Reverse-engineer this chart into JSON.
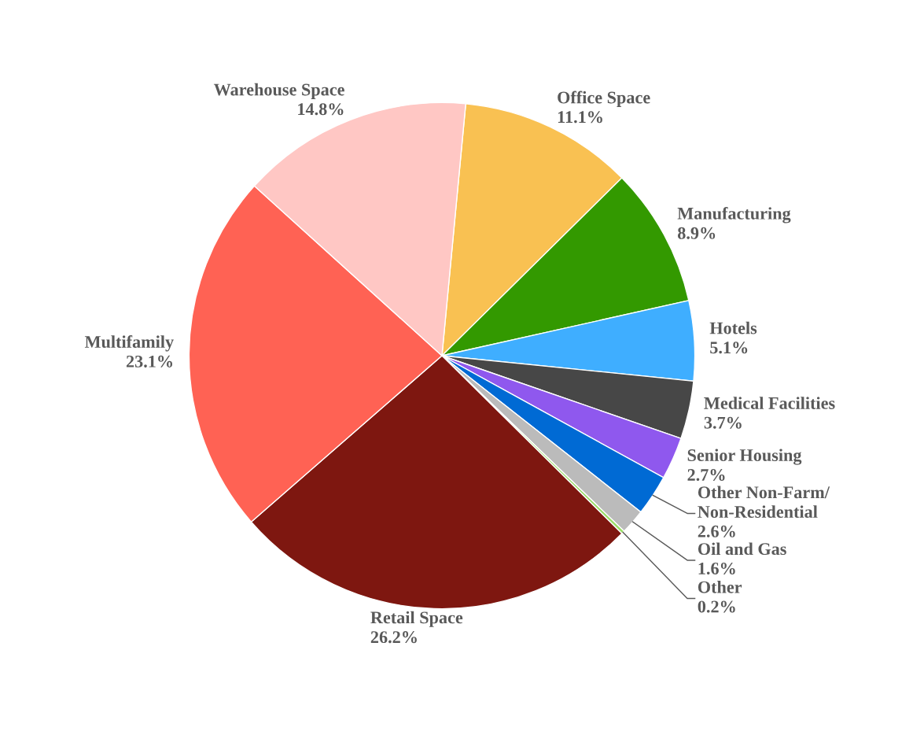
{
  "chart_data": {
    "type": "pie",
    "legend": false,
    "value_labels": [
      "11.1%",
      "8.9%",
      "5.1%",
      "3.7%",
      "2.7%",
      "2.6%",
      "1.6%",
      "0.2%",
      "26.2%",
      "23.1%",
      "14.8%"
    ],
    "categories": [
      "Office Space",
      "Manufacturing",
      "Hotels",
      "Medical Facilities",
      "Senior Housing",
      "Other Non-Farm/\nNon-Residential",
      "Oil and Gas",
      "Other",
      "Retail Space",
      "Multifamily",
      "Warehouse Space"
    ],
    "values": [
      11.1,
      8.9,
      5.1,
      3.7,
      2.7,
      2.6,
      1.6,
      0.2,
      26.2,
      23.1,
      14.8
    ],
    "colors": [
      "#f9c152",
      "#339900",
      "#3faeff",
      "#474747",
      "#8f58ee",
      "#006ad4",
      "#bbbbbb",
      "#99dd66",
      "#7e1710",
      "#ff6254",
      "#ffc7c4"
    ]
  }
}
